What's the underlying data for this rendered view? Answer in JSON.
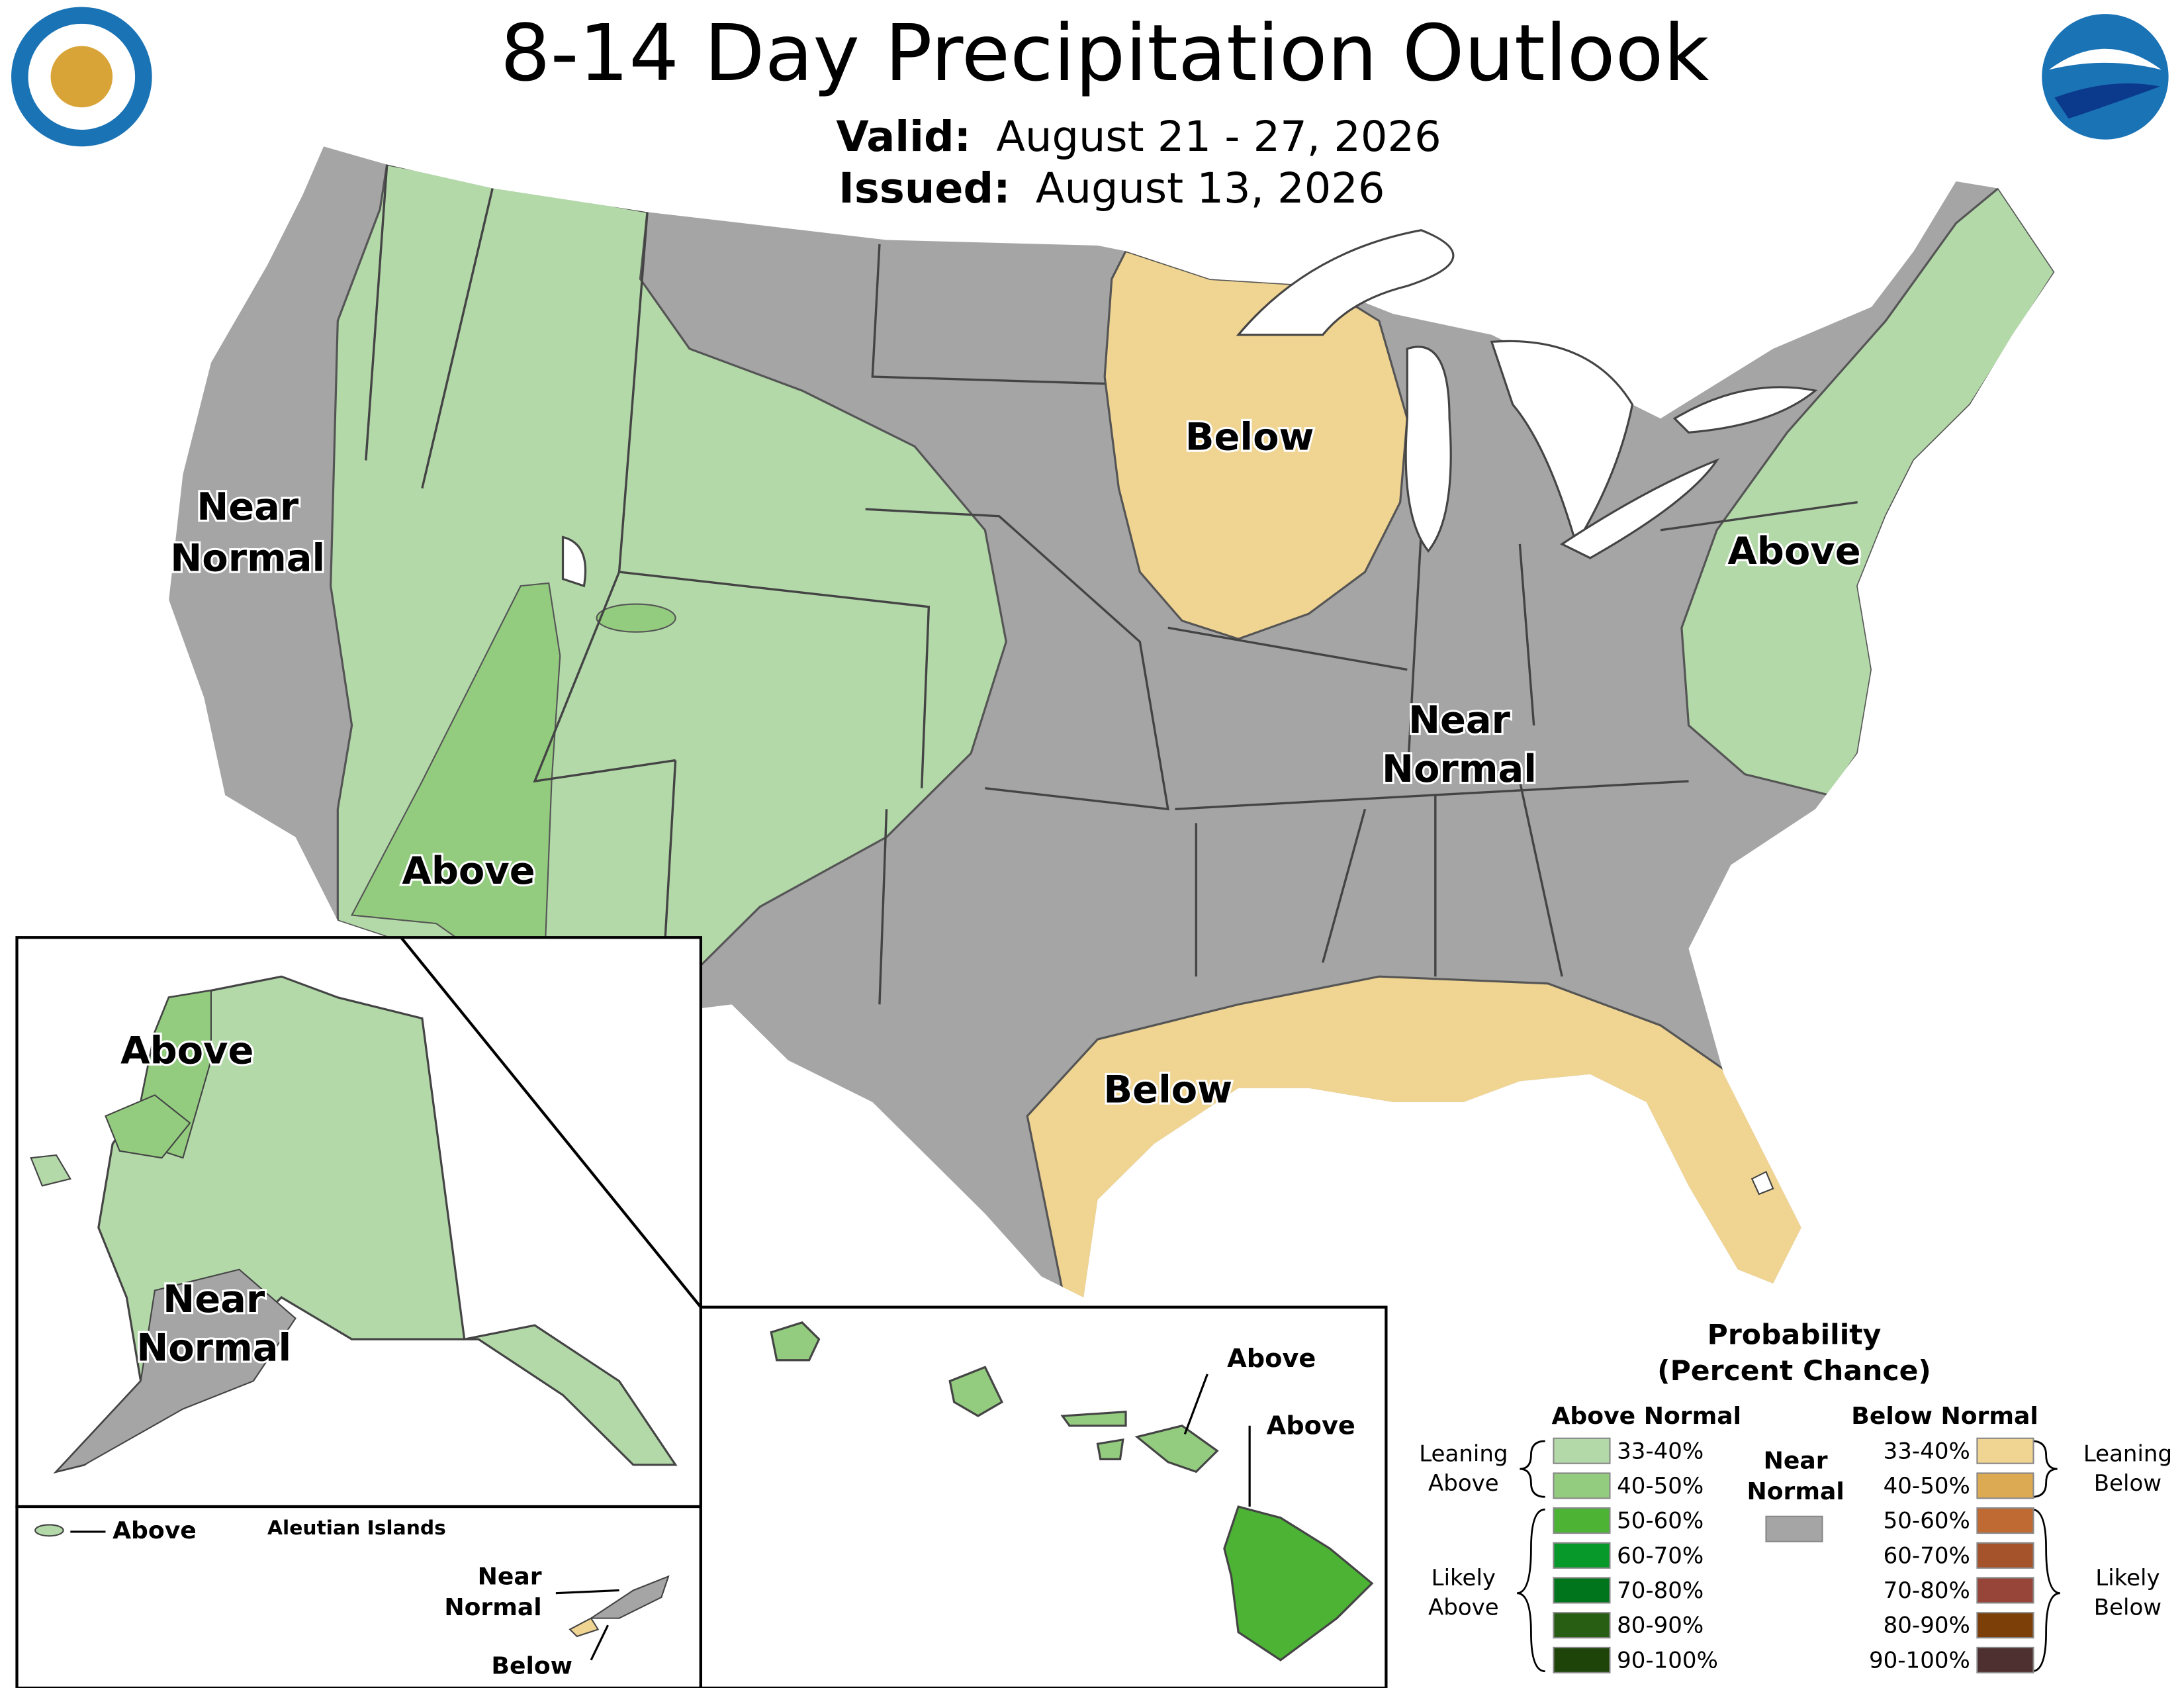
{
  "header": {
    "title": "8-14 Day Precipitation Outlook",
    "valid_label": "Valid:",
    "valid": "August 21 - 27, 2026",
    "issued_label": "Issued:",
    "issued": "August 13, 2026"
  },
  "map_labels": {
    "west_near": [
      "Near",
      "Normal"
    ],
    "west_above": "Above",
    "midwest_below": "Below",
    "central_near": [
      "Near",
      "Normal"
    ],
    "east_above": "Above",
    "gulf_below": "Below",
    "alaska_above": "Above",
    "alaska_near": [
      "Near",
      "Normal"
    ],
    "aleutian_title": "Aleutian Islands",
    "aleutian_above": "Above",
    "aleutian_near": [
      "Near",
      "Normal"
    ],
    "aleutian_below": "Below",
    "hawaii_above_1": "Above",
    "hawaii_above_2": "Above"
  },
  "legend": {
    "title": [
      "Probability",
      "(Percent Chance)"
    ],
    "above_heading": "Above Normal",
    "below_heading": "Below Normal",
    "near_heading": [
      "Near",
      "Normal"
    ],
    "near_color": "#a5a5a5",
    "above": [
      {
        "label": "33-40%",
        "color": "#b3d9a9"
      },
      {
        "label": "40-50%",
        "color": "#93cc7f"
      },
      {
        "label": "50-60%",
        "color": "#4cb335"
      },
      {
        "label": "60-70%",
        "color": "#079a2b"
      },
      {
        "label": "70-80%",
        "color": "#00751b"
      },
      {
        "label": "80-90%",
        "color": "#285e13"
      },
      {
        "label": "90-100%",
        "color": "#1f4409"
      }
    ],
    "below": [
      {
        "label": "33-40%",
        "color": "#f0d492"
      },
      {
        "label": "40-50%",
        "color": "#dbaa52"
      },
      {
        "label": "50-60%",
        "color": "#bf6a32"
      },
      {
        "label": "60-70%",
        "color": "#a4532b"
      },
      {
        "label": "70-80%",
        "color": "#974539"
      },
      {
        "label": "80-90%",
        "color": "#7c3f08"
      },
      {
        "label": "90-100%",
        "color": "#4e3031"
      }
    ],
    "leaning_above": [
      "Leaning",
      "Above"
    ],
    "likely_above": [
      "Likely",
      "Above"
    ],
    "leaning_below": [
      "Leaning",
      "Below"
    ],
    "likely_below": [
      "Likely",
      "Below"
    ]
  }
}
